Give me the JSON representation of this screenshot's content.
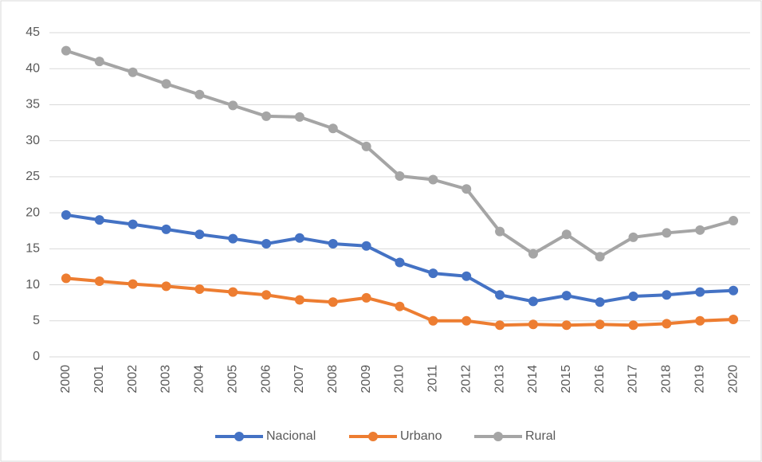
{
  "chart_data": {
    "type": "line",
    "categories": [
      "2000",
      "2001",
      "2002",
      "2003",
      "2004",
      "2005",
      "2006",
      "2007",
      "2008",
      "2009",
      "2010",
      "2011",
      "2012",
      "2013",
      "2014",
      "2015",
      "2016",
      "2017",
      "2018",
      "2019",
      "2020"
    ],
    "series": [
      {
        "name": "Nacional",
        "color": "#4472c4",
        "values": [
          19.7,
          19.0,
          18.4,
          17.7,
          17.0,
          16.4,
          15.7,
          16.5,
          15.7,
          15.4,
          13.1,
          11.6,
          11.2,
          8.6,
          7.7,
          8.5,
          7.6,
          8.4,
          8.6,
          9.0,
          9.2
        ]
      },
      {
        "name": "Urbano",
        "color": "#ed7d31",
        "values": [
          10.9,
          10.5,
          10.1,
          9.8,
          9.4,
          9.0,
          8.6,
          7.9,
          7.6,
          8.2,
          7.0,
          5.0,
          5.0,
          4.4,
          4.5,
          4.4,
          4.5,
          4.4,
          4.6,
          5.0,
          5.2
        ]
      },
      {
        "name": "Rural",
        "color": "#a5a5a5",
        "values": [
          42.5,
          41.0,
          39.5,
          37.9,
          36.4,
          34.9,
          33.4,
          33.3,
          31.7,
          29.2,
          25.1,
          24.6,
          23.3,
          17.4,
          14.3,
          17.0,
          13.9,
          16.6,
          17.2,
          17.6,
          18.9
        ]
      }
    ],
    "ylim": [
      0,
      45
    ],
    "yticks": [
      0,
      5,
      10,
      15,
      20,
      25,
      30,
      35,
      40,
      45
    ],
    "grid": true,
    "legend": "bottom"
  }
}
